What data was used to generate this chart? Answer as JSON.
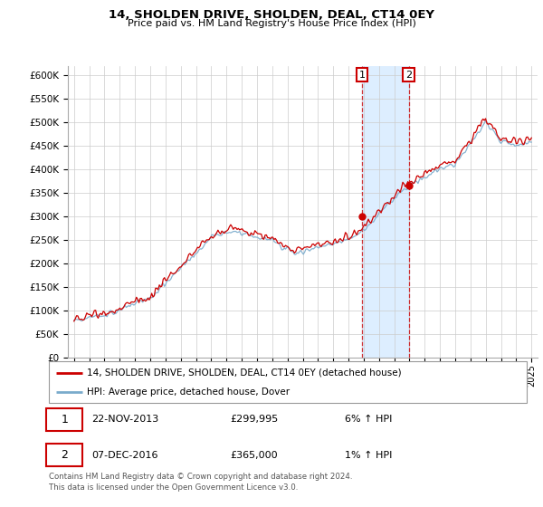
{
  "title": "14, SHOLDEN DRIVE, SHOLDEN, DEAL, CT14 0EY",
  "subtitle": "Price paid vs. HM Land Registry's House Price Index (HPI)",
  "legend_line1": "14, SHOLDEN DRIVE, SHOLDEN, DEAL, CT14 0EY (detached house)",
  "legend_line2": "HPI: Average price, detached house, Dover",
  "transaction1_date": "22-NOV-2013",
  "transaction1_price": 299995,
  "transaction1_pct": "6% ↑ HPI",
  "transaction2_date": "07-DEC-2016",
  "transaction2_price": 365000,
  "transaction2_pct": "1% ↑ HPI",
  "footer": "Contains HM Land Registry data © Crown copyright and database right 2024.\nThis data is licensed under the Open Government Licence v3.0.",
  "red_color": "#cc0000",
  "blue_color": "#7aabcc",
  "shade_color": "#ddeeff",
  "ylim": [
    0,
    620000
  ],
  "yticks": [
    0,
    50000,
    100000,
    150000,
    200000,
    250000,
    300000,
    350000,
    400000,
    450000,
    500000,
    550000,
    600000
  ],
  "transaction1_year": 2013.9,
  "transaction2_year": 2016.95,
  "xlim_left": 1994.6,
  "xlim_right": 2025.4
}
